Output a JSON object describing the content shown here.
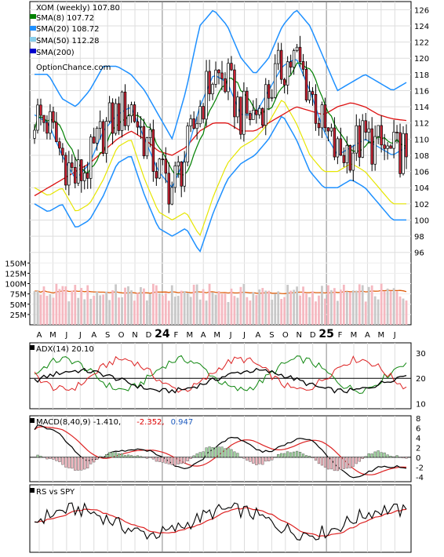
{
  "chart_data": {
    "type": "line",
    "symbol": "XOM",
    "period": "weekly",
    "title": "XOM (weekly) 107.80",
    "watermark": "OptionChance.com",
    "legend": [
      {
        "label": "SMA(8) 107.72",
        "color": "#008000"
      },
      {
        "label": "SMA(20) 108.72",
        "color": "#1e90ff"
      },
      {
        "label": "SMA(50) 112.28",
        "color": "#87ceeb"
      },
      {
        "label": "SMA(200)",
        "color": "#0000cd"
      }
    ],
    "price_axis": {
      "ylim": [
        95,
        127
      ],
      "ticks": [
        96,
        98,
        100,
        102,
        104,
        106,
        108,
        110,
        112,
        114,
        116,
        118,
        120,
        122,
        124,
        126
      ]
    },
    "volume_axis": {
      "ticks": [
        "150M",
        "125M",
        "100M",
        "75M",
        "50M",
        "25M"
      ],
      "tick_values": [
        150,
        125,
        100,
        75,
        50,
        25
      ],
      "ylim": [
        0,
        160
      ]
    },
    "x_months": [
      "A",
      "M",
      "J",
      "J",
      "A",
      "S",
      "O",
      "N",
      "D",
      "24",
      "F",
      "M",
      "A",
      "M",
      "J",
      "J",
      "A",
      "S",
      "O",
      "N",
      "D",
      "25",
      "F",
      "M",
      "A",
      "M",
      "J"
    ],
    "year_labels": [
      "24",
      "25"
    ],
    "sma20_x": [
      "A",
      "M",
      "J",
      "J",
      "A",
      "S",
      "O",
      "N",
      "D",
      "24",
      "F",
      "M",
      "A",
      "M",
      "J",
      "J",
      "A",
      "S",
      "O",
      "N",
      "D",
      "25",
      "F",
      "M",
      "A",
      "M",
      "J",
      "J"
    ],
    "sma20": [
      113,
      112,
      108,
      105,
      107,
      111,
      113,
      114,
      110,
      106,
      104,
      108,
      114,
      118,
      117,
      113,
      113,
      116,
      119,
      120,
      116,
      111,
      108,
      109,
      110,
      109,
      108,
      109
    ],
    "sma50_x": [
      "A",
      "M",
      "J",
      "J",
      "A",
      "S",
      "O",
      "N",
      "D",
      "24",
      "F",
      "M",
      "A",
      "M",
      "J",
      "J",
      "A",
      "S",
      "O",
      "N",
      "D",
      "25",
      "F",
      "M",
      "A",
      "M",
      "J",
      "J"
    ],
    "sma50": [
      103,
      104,
      105,
      106,
      107,
      108.5,
      110,
      111,
      110,
      108.5,
      108,
      109,
      111,
      112,
      112,
      111,
      111,
      112,
      113,
      114,
      113.5,
      113,
      114,
      114.5,
      114,
      113,
      112.5,
      112.3
    ],
    "band_upper_x": [
      "A",
      "M",
      "J",
      "J",
      "A",
      "S",
      "O",
      "N",
      "D",
      "24",
      "F",
      "M",
      "A",
      "M",
      "J",
      "J",
      "A",
      "S",
      "O",
      "N",
      "D",
      "25",
      "F",
      "M",
      "A",
      "M",
      "J",
      "J"
    ],
    "band_upper": [
      118,
      118,
      115,
      114,
      116,
      119,
      119,
      118,
      116,
      113,
      110,
      116,
      124,
      126,
      124,
      120,
      118,
      120,
      124,
      126,
      124,
      120,
      116,
      117,
      118,
      117,
      116,
      117
    ],
    "band_lower_x": [
      "A",
      "M",
      "J",
      "J",
      "A",
      "S",
      "O",
      "N",
      "D",
      "24",
      "F",
      "M",
      "A",
      "M",
      "J",
      "J",
      "A",
      "S",
      "O",
      "N",
      "D",
      "25",
      "F",
      "M",
      "A",
      "M",
      "J",
      "J"
    ],
    "band_lower": [
      102,
      101,
      102,
      99,
      100,
      103,
      107,
      108,
      103,
      99,
      98,
      99,
      96,
      101,
      105,
      107,
      108,
      110,
      113,
      110,
      106,
      104,
      104,
      105,
      104,
      102,
      100,
      100
    ],
    "volume_axis_x_note": "volume bars are pink on down weeks and grey on up weeks",
    "adx": {
      "label": "ADX(14) 20.10",
      "ticks": [
        10,
        20,
        30
      ],
      "ylim": [
        8,
        34
      ]
    },
    "macd": {
      "label": "MACD(8,40,9) -1.410,",
      "value2": "-2.352,",
      "value2_color": "#dd0000",
      "value3": "0.947",
      "value3_color": "#1e5bbf",
      "ticks": [
        8,
        6,
        4,
        2,
        0,
        -2,
        -4
      ],
      "ylim": [
        -5,
        8.5
      ]
    },
    "rs": {
      "label": "RS vs SPY"
    },
    "grid": true,
    "colors": {
      "up_candle": "#ffffff",
      "down_candle": "#cc2233",
      "sma8": "#008000",
      "sma20": "#1e90ff",
      "sma50": "#87ceeb",
      "sma50_band": "#dd1111",
      "band_upper": "#1e90ff",
      "band_lower_yellow": "#e6e600",
      "vol_up": "#c8c8c8",
      "vol_down": "#f5b8c0",
      "vol_avg": "#e06010"
    }
  }
}
